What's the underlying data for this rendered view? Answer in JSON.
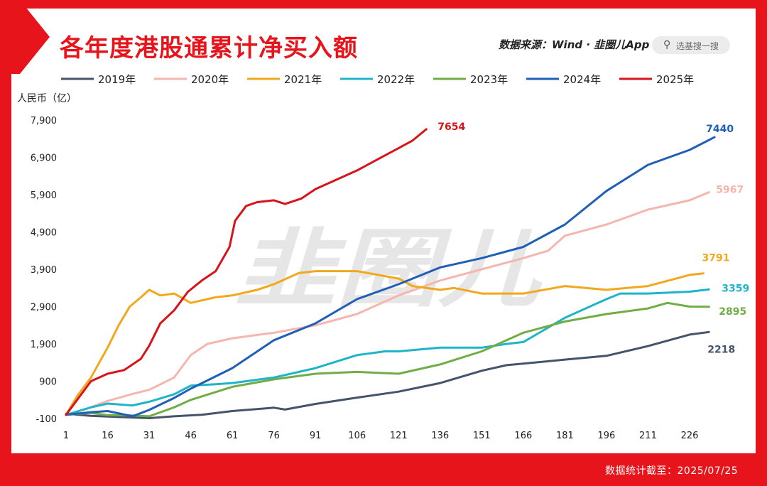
{
  "header": {
    "title": "各年度港股通累计净买入额",
    "source": "数据来源：Wind · 韭圈儿App",
    "search_placeholder": "选基搜一搜"
  },
  "footer": {
    "note": "数据统计截至：2025/07/25"
  },
  "watermark": "韭圈儿",
  "colors": {
    "frame": "#e8141c",
    "panel": "#ffffff"
  },
  "chart_data": {
    "type": "line",
    "title": "各年度港股通累计净买入额",
    "ylabel": "人民币（亿）",
    "xlabel": "",
    "ylim": [
      -100,
      7900
    ],
    "xlim": [
      1,
      236
    ],
    "y_ticks": [
      -100,
      900,
      1900,
      2900,
      3900,
      4900,
      5900,
      6900,
      7900
    ],
    "y_tick_labels": [
      "-100",
      "900",
      "1,900",
      "2,900",
      "3,900",
      "4,900",
      "5,900",
      "6,900",
      "7,900"
    ],
    "x_ticks": [
      1,
      16,
      31,
      46,
      61,
      76,
      91,
      106,
      121,
      136,
      151,
      166,
      181,
      196,
      211,
      226
    ],
    "x_tick_labels": [
      "1",
      "16",
      "31",
      "46",
      "61",
      "76",
      "91",
      "106",
      "121",
      "136",
      "151",
      "166",
      "181",
      "196",
      "211",
      "226"
    ],
    "grid": false,
    "legend_position": "top",
    "series": [
      {
        "name": "2019年",
        "color": "#44546a",
        "end_label": "2218",
        "points": [
          [
            1,
            30
          ],
          [
            10,
            -30
          ],
          [
            20,
            -60
          ],
          [
            31,
            -90
          ],
          [
            40,
            -40
          ],
          [
            50,
            0
          ],
          [
            61,
            100
          ],
          [
            76,
            190
          ],
          [
            80,
            140
          ],
          [
            91,
            290
          ],
          [
            106,
            460
          ],
          [
            121,
            620
          ],
          [
            136,
            850
          ],
          [
            151,
            1180
          ],
          [
            160,
            1330
          ],
          [
            166,
            1370
          ],
          [
            181,
            1480
          ],
          [
            196,
            1580
          ],
          [
            211,
            1840
          ],
          [
            226,
            2150
          ],
          [
            233,
            2218
          ]
        ]
      },
      {
        "name": "2020年",
        "color": "#f4b6ae",
        "end_label": "5967",
        "points": [
          [
            1,
            0
          ],
          [
            8,
            150
          ],
          [
            16,
            370
          ],
          [
            25,
            560
          ],
          [
            31,
            670
          ],
          [
            40,
            1000
          ],
          [
            46,
            1600
          ],
          [
            52,
            1900
          ],
          [
            61,
            2050
          ],
          [
            76,
            2200
          ],
          [
            91,
            2400
          ],
          [
            106,
            2700
          ],
          [
            115,
            3000
          ],
          [
            121,
            3200
          ],
          [
            136,
            3600
          ],
          [
            151,
            3900
          ],
          [
            166,
            4200
          ],
          [
            175,
            4400
          ],
          [
            181,
            4800
          ],
          [
            196,
            5100
          ],
          [
            211,
            5500
          ],
          [
            220,
            5650
          ],
          [
            226,
            5750
          ],
          [
            233,
            5967
          ]
        ]
      },
      {
        "name": "2021年",
        "color": "#f2a81d",
        "end_label": "3791",
        "points": [
          [
            1,
            0
          ],
          [
            5,
            500
          ],
          [
            10,
            1000
          ],
          [
            16,
            1800
          ],
          [
            20,
            2400
          ],
          [
            24,
            2900
          ],
          [
            28,
            3150
          ],
          [
            31,
            3350
          ],
          [
            35,
            3200
          ],
          [
            40,
            3250
          ],
          [
            46,
            3000
          ],
          [
            55,
            3150
          ],
          [
            61,
            3200
          ],
          [
            70,
            3350
          ],
          [
            76,
            3500
          ],
          [
            85,
            3800
          ],
          [
            91,
            3850
          ],
          [
            106,
            3850
          ],
          [
            110,
            3800
          ],
          [
            121,
            3650
          ],
          [
            126,
            3450
          ],
          [
            136,
            3350
          ],
          [
            141,
            3400
          ],
          [
            151,
            3250
          ],
          [
            166,
            3250
          ],
          [
            181,
            3450
          ],
          [
            196,
            3350
          ],
          [
            211,
            3450
          ],
          [
            226,
            3750
          ],
          [
            231,
            3791
          ]
        ]
      },
      {
        "name": "2022年",
        "color": "#1fb4c9",
        "end_label": "3359",
        "points": [
          [
            1,
            0
          ],
          [
            10,
            200
          ],
          [
            16,
            300
          ],
          [
            25,
            250
          ],
          [
            31,
            350
          ],
          [
            40,
            550
          ],
          [
            46,
            780
          ],
          [
            55,
            820
          ],
          [
            61,
            850
          ],
          [
            76,
            1000
          ],
          [
            91,
            1250
          ],
          [
            106,
            1600
          ],
          [
            116,
            1700
          ],
          [
            121,
            1700
          ],
          [
            136,
            1800
          ],
          [
            151,
            1800
          ],
          [
            160,
            1900
          ],
          [
            166,
            1950
          ],
          [
            181,
            2600
          ],
          [
            196,
            3100
          ],
          [
            201,
            3250
          ],
          [
            211,
            3250
          ],
          [
            226,
            3300
          ],
          [
            233,
            3359
          ]
        ]
      },
      {
        "name": "2023年",
        "color": "#70ad47",
        "end_label": "2895",
        "points": [
          [
            1,
            0
          ],
          [
            10,
            50
          ],
          [
            16,
            -10
          ],
          [
            25,
            -20
          ],
          [
            31,
            -40
          ],
          [
            40,
            200
          ],
          [
            46,
            400
          ],
          [
            61,
            750
          ],
          [
            76,
            950
          ],
          [
            91,
            1100
          ],
          [
            106,
            1150
          ],
          [
            121,
            1100
          ],
          [
            136,
            1350
          ],
          [
            151,
            1700
          ],
          [
            166,
            2200
          ],
          [
            181,
            2500
          ],
          [
            196,
            2700
          ],
          [
            211,
            2850
          ],
          [
            218,
            3000
          ],
          [
            226,
            2900
          ],
          [
            233,
            2895
          ]
        ]
      },
      {
        "name": "2024年",
        "color": "#1f5fb8",
        "end_label": "7440",
        "points": [
          [
            1,
            0
          ],
          [
            10,
            70
          ],
          [
            16,
            100
          ],
          [
            25,
            -40
          ],
          [
            31,
            130
          ],
          [
            40,
            450
          ],
          [
            46,
            700
          ],
          [
            61,
            1250
          ],
          [
            76,
            2000
          ],
          [
            91,
            2450
          ],
          [
            106,
            3100
          ],
          [
            121,
            3500
          ],
          [
            136,
            3950
          ],
          [
            151,
            4200
          ],
          [
            166,
            4500
          ],
          [
            181,
            5100
          ],
          [
            196,
            6000
          ],
          [
            211,
            6700
          ],
          [
            226,
            7100
          ],
          [
            235,
            7440
          ]
        ]
      },
      {
        "name": "2025年",
        "color": "#d7141a",
        "end_label": "7654",
        "points": [
          [
            1,
            0
          ],
          [
            5,
            400
          ],
          [
            10,
            900
          ],
          [
            16,
            1100
          ],
          [
            22,
            1200
          ],
          [
            28,
            1500
          ],
          [
            31,
            1850
          ],
          [
            35,
            2450
          ],
          [
            40,
            2800
          ],
          [
            45,
            3300
          ],
          [
            50,
            3600
          ],
          [
            55,
            3850
          ],
          [
            60,
            4500
          ],
          [
            62,
            5200
          ],
          [
            66,
            5600
          ],
          [
            70,
            5700
          ],
          [
            76,
            5750
          ],
          [
            80,
            5650
          ],
          [
            86,
            5800
          ],
          [
            91,
            6050
          ],
          [
            100,
            6350
          ],
          [
            106,
            6550
          ],
          [
            116,
            6950
          ],
          [
            121,
            7150
          ],
          [
            126,
            7350
          ],
          [
            131,
            7654
          ]
        ]
      }
    ]
  }
}
